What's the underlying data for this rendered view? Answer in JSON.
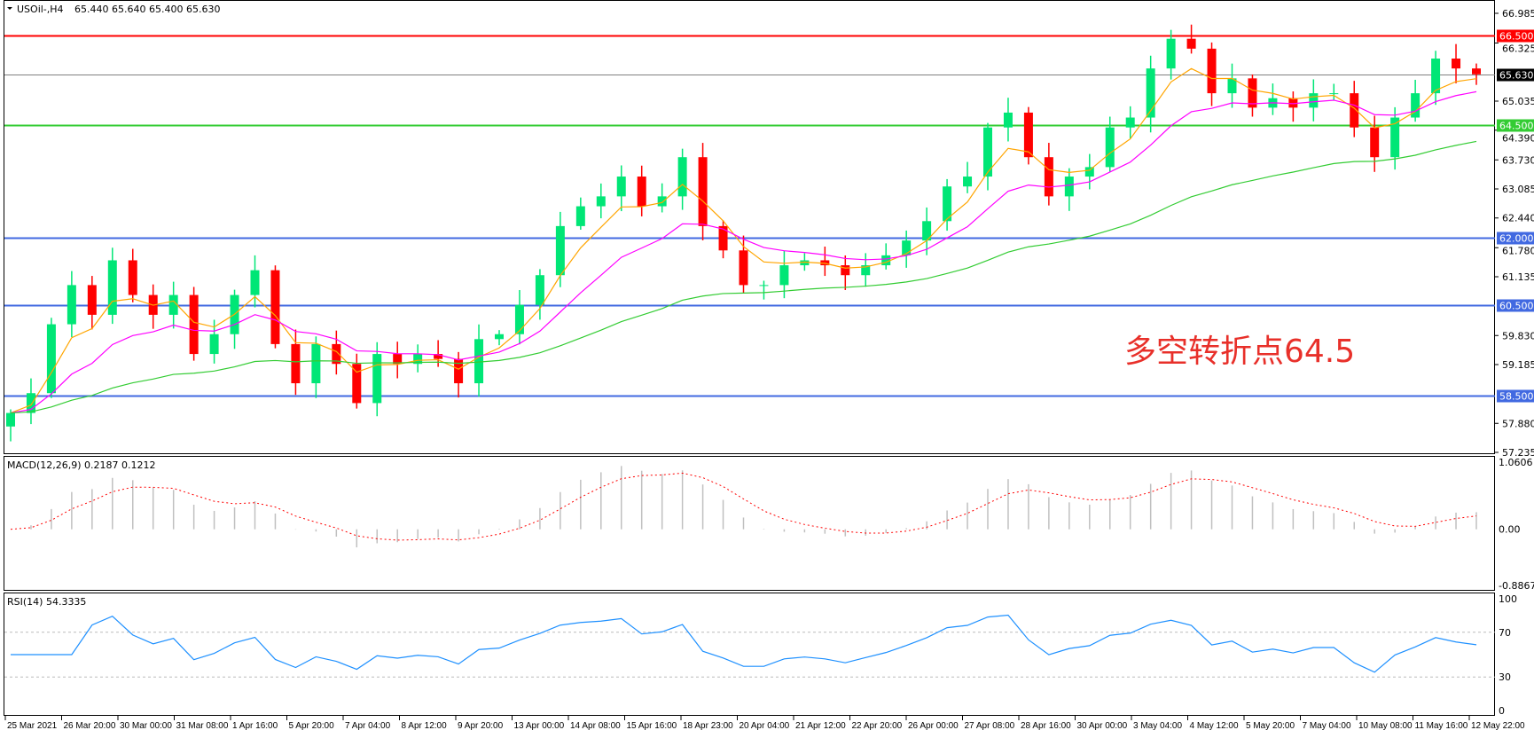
{
  "header": {
    "symbol": "USOil-,H4",
    "ohlc": "65.440 65.640 65.400 65.630"
  },
  "annotation": "多空转折点64.5",
  "colors": {
    "bull": "#00e676",
    "bear": "#ff0000",
    "ma_fast": "#ffa500",
    "ma_mid": "#ff00ff",
    "ma_slow": "#33cc33",
    "macd_hist": "#c0c0c0",
    "macd_signal": "#ff0000",
    "rsi": "#1e90ff",
    "support_blue": "#4169e1"
  },
  "chart_data": {
    "type": "candlestick",
    "price_axis": {
      "range": [
        57.235,
        66.985
      ],
      "ticks": [
        "66.985",
        "66.325",
        "65.035",
        "64.390",
        "63.730",
        "63.085",
        "62.440",
        "61.780",
        "61.135",
        "59.830",
        "59.185",
        "57.880",
        "57.235"
      ]
    },
    "closes": [
      58.11,
      58.55,
      60.08,
      60.95,
      60.29,
      61.5,
      60.73,
      60.29,
      60.73,
      59.42,
      59.86,
      60.73,
      61.28,
      59.64,
      58.77,
      59.64,
      59.2,
      58.33,
      59.42,
      59.2,
      59.42,
      59.31,
      58.77,
      59.75,
      59.86,
      60.51,
      61.17,
      62.26,
      62.7,
      62.92,
      63.36,
      62.7,
      62.92,
      63.79,
      62.26,
      61.72,
      60.95,
      60.95,
      61.39,
      61.5,
      61.39,
      61.17,
      61.39,
      61.61,
      61.94,
      62.37,
      63.14,
      63.36,
      64.45,
      64.78,
      63.79,
      62.92,
      63.36,
      63.57,
      64.45,
      64.67,
      65.76,
      66.42,
      66.2,
      65.21,
      65.54,
      64.89,
      65.1,
      64.89,
      65.21,
      65.21,
      64.45,
      63.79,
      64.67,
      65.21,
      65.98,
      65.76,
      65.63
    ],
    "levels": [
      {
        "price": 66.5,
        "label": "66.500",
        "color": "#ff0000"
      },
      {
        "price": 65.63,
        "label": "65.630",
        "color": "#808080",
        "tag_color": "#000000"
      },
      {
        "price": 64.5,
        "label": "64.500",
        "color": "#33cc33"
      },
      {
        "price": 62.0,
        "label": "62.000",
        "color": "#4169e1"
      },
      {
        "price": 60.5,
        "label": "60.500",
        "color": "#4169e1"
      },
      {
        "price": 58.5,
        "label": "58.500",
        "color": "#4169e1"
      }
    ],
    "macd": {
      "label": "MACD(12,26,9) 0.2187 0.1212",
      "range": [
        -0.8867,
        1.0606
      ],
      "ticks": [
        "1.0606",
        "0.00",
        "-0.8867"
      ]
    },
    "rsi": {
      "label": "RSI(14) 54.3335",
      "range": [
        0,
        100
      ],
      "ticks": [
        "100",
        "70",
        "30",
        "0"
      ],
      "levels": [
        70,
        30
      ]
    },
    "time_labels": [
      "25 Mar 2021",
      "26 Mar 20:00",
      "30 Mar 00:00",
      "31 Mar 08:00",
      "1 Apr 16:00",
      "5 Apr 20:00",
      "7 Apr 04:00",
      "8 Apr 12:00",
      "9 Apr 20:00",
      "13 Apr 00:00",
      "14 Apr 08:00",
      "15 Apr 16:00",
      "18 Apr 23:00",
      "20 Apr 04:00",
      "21 Apr 12:00",
      "22 Apr 20:00",
      "26 Apr 00:00",
      "27 Apr 08:00",
      "28 Apr 16:00",
      "30 Apr 00:00",
      "3 May 04:00",
      "4 May 12:00",
      "5 May 20:00",
      "7 May 04:00",
      "10 May 08:00",
      "11 May 16:00",
      "12 May 22:00"
    ]
  }
}
